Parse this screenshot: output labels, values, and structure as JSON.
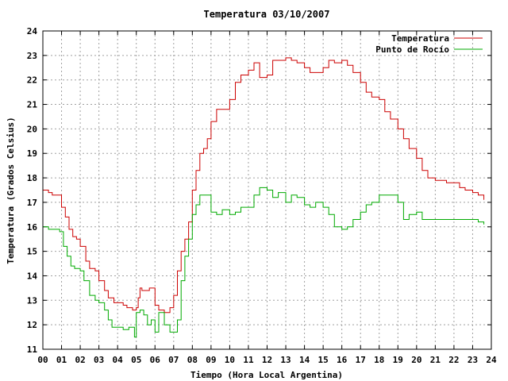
{
  "chart_data": {
    "type": "line",
    "title": "Temperatura 03/10/2007",
    "xlabel": "Tiempo (Hora Local Argentina)",
    "ylabel": "Temperatura (Grados Celsius)",
    "xlim": [
      0,
      24
    ],
    "ylim": [
      11,
      24
    ],
    "xticks": [
      "00",
      "01",
      "02",
      "03",
      "04",
      "05",
      "06",
      "07",
      "08",
      "09",
      "10",
      "11",
      "12",
      "13",
      "14",
      "15",
      "16",
      "17",
      "18",
      "19",
      "20",
      "21",
      "22",
      "23",
      "24"
    ],
    "yticks": [
      "11",
      "12",
      "13",
      "14",
      "15",
      "16",
      "17",
      "18",
      "19",
      "20",
      "21",
      "22",
      "23",
      "24"
    ],
    "grid": true,
    "legend_position": "top-right",
    "series": [
      {
        "name": "Temperatura",
        "color": "#cc0000",
        "x": [
          0,
          0.3,
          0.5,
          0.8,
          1.0,
          1.2,
          1.4,
          1.6,
          1.8,
          2.0,
          2.3,
          2.5,
          2.8,
          3.0,
          3.3,
          3.5,
          3.8,
          4.0,
          4.3,
          4.5,
          4.8,
          5.0,
          5.1,
          5.2,
          5.3,
          5.5,
          5.7,
          6.0,
          6.2,
          6.5,
          6.8,
          7.0,
          7.2,
          7.4,
          7.6,
          7.8,
          8.0,
          8.2,
          8.4,
          8.6,
          8.8,
          9.0,
          9.3,
          9.6,
          10.0,
          10.3,
          10.6,
          11.0,
          11.3,
          11.6,
          12.0,
          12.3,
          12.6,
          13.0,
          13.3,
          13.6,
          14.0,
          14.3,
          14.6,
          15.0,
          15.3,
          15.6,
          16.0,
          16.3,
          16.6,
          17.0,
          17.3,
          17.6,
          18.0,
          18.3,
          18.6,
          19.0,
          19.3,
          19.6,
          20.0,
          20.3,
          20.6,
          21.0,
          21.3,
          21.6,
          22.0,
          22.3,
          22.6,
          23.0,
          23.3,
          23.6
        ],
        "values": [
          17.5,
          17.4,
          17.3,
          17.3,
          16.8,
          16.4,
          15.9,
          15.6,
          15.5,
          15.2,
          14.6,
          14.3,
          14.2,
          13.8,
          13.4,
          13.1,
          12.9,
          12.9,
          12.8,
          12.7,
          12.6,
          12.7,
          13.1,
          13.5,
          13.4,
          13.4,
          13.5,
          12.8,
          12.6,
          12.5,
          12.7,
          13.2,
          14.2,
          15.0,
          15.5,
          16.2,
          17.5,
          18.3,
          19.0,
          19.2,
          19.6,
          20.3,
          20.8,
          20.8,
          21.2,
          21.9,
          22.2,
          22.4,
          22.7,
          22.1,
          22.2,
          22.8,
          22.8,
          22.9,
          22.8,
          22.7,
          22.5,
          22.3,
          22.3,
          22.5,
          22.8,
          22.7,
          22.8,
          22.6,
          22.3,
          21.9,
          21.5,
          21.3,
          21.2,
          20.7,
          20.4,
          20.0,
          19.6,
          19.2,
          18.8,
          18.3,
          18.0,
          17.9,
          17.9,
          17.8,
          17.8,
          17.6,
          17.5,
          17.4,
          17.3,
          17.1
        ]
      },
      {
        "name": "Punto de Rocío",
        "color": "#00aa00",
        "x": [
          0,
          0.3,
          0.6,
          0.9,
          1.1,
          1.3,
          1.5,
          1.7,
          2.0,
          2.2,
          2.5,
          2.8,
          3.0,
          3.3,
          3.5,
          3.7,
          4.0,
          4.3,
          4.6,
          4.9,
          5.0,
          5.2,
          5.4,
          5.6,
          5.8,
          6.0,
          6.2,
          6.5,
          6.8,
          7.0,
          7.2,
          7.4,
          7.6,
          7.8,
          8.0,
          8.2,
          8.4,
          8.6,
          8.8,
          9.0,
          9.3,
          9.6,
          10.0,
          10.3,
          10.6,
          11.0,
          11.3,
          11.6,
          12.0,
          12.3,
          12.6,
          13.0,
          13.3,
          13.6,
          14.0,
          14.3,
          14.6,
          15.0,
          15.3,
          15.6,
          16.0,
          16.3,
          16.6,
          17.0,
          17.3,
          17.6,
          18.0,
          18.3,
          18.6,
          19.0,
          19.3,
          19.6,
          20.0,
          20.3,
          20.6,
          21.0,
          21.3,
          21.6,
          22.0,
          22.3,
          22.6,
          23.0,
          23.3,
          23.6
        ],
        "values": [
          16.0,
          15.9,
          15.9,
          15.8,
          15.2,
          14.8,
          14.4,
          14.3,
          14.2,
          13.8,
          13.2,
          13.0,
          12.9,
          12.6,
          12.2,
          11.9,
          11.9,
          11.8,
          11.9,
          11.5,
          12.5,
          12.6,
          12.4,
          12.0,
          12.2,
          11.7,
          12.5,
          12.0,
          11.7,
          11.7,
          12.2,
          13.8,
          14.8,
          15.5,
          16.5,
          16.9,
          17.3,
          17.3,
          17.3,
          16.6,
          16.5,
          16.7,
          16.5,
          16.6,
          16.8,
          16.8,
          17.3,
          17.6,
          17.5,
          17.2,
          17.4,
          17.0,
          17.3,
          17.2,
          16.9,
          16.8,
          17.0,
          16.8,
          16.5,
          16.0,
          15.9,
          16.0,
          16.3,
          16.6,
          16.9,
          17.0,
          17.3,
          17.3,
          17.3,
          17.0,
          16.3,
          16.5,
          16.6,
          16.3,
          16.3,
          16.3,
          16.3,
          16.3,
          16.3,
          16.3,
          16.3,
          16.3,
          16.2,
          16.1
        ]
      }
    ]
  }
}
